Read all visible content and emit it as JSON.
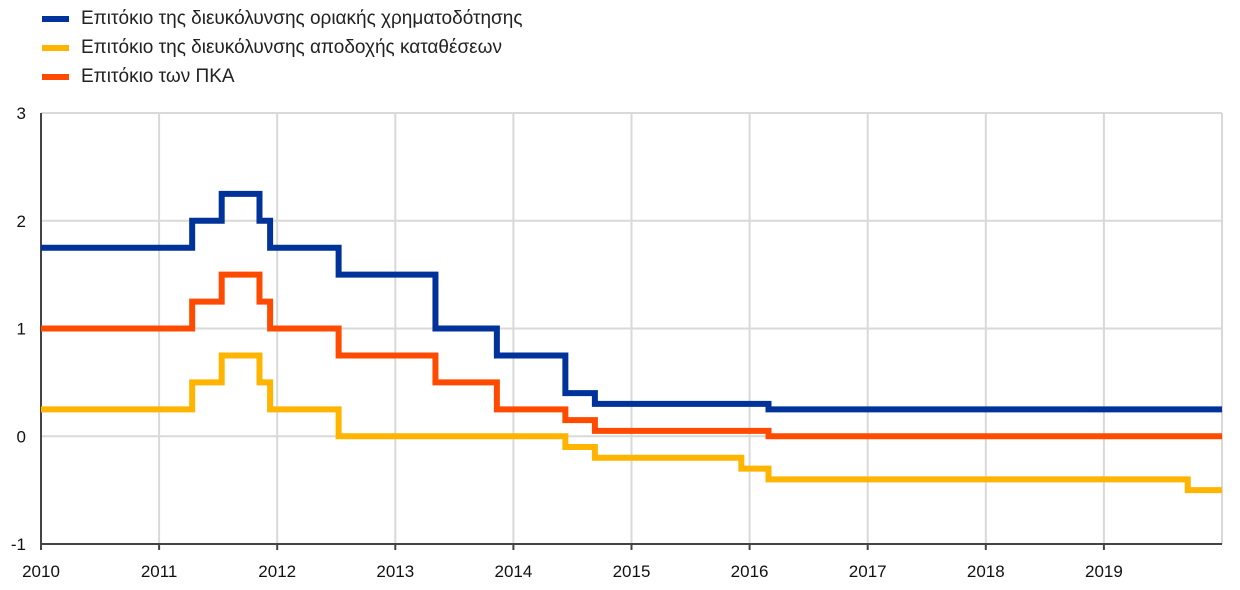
{
  "chart_data": {
    "type": "line",
    "step": true,
    "title": "",
    "xlabel": "",
    "ylabel": "",
    "xlim": [
      2010.0,
      2020.0
    ],
    "ylim": [
      -1,
      3
    ],
    "x_ticks": [
      2010,
      2011,
      2012,
      2013,
      2014,
      2015,
      2016,
      2017,
      2018,
      2019
    ],
    "x_tick_labels": [
      "2010",
      "2011",
      "2012",
      "2013",
      "2014",
      "2015",
      "2016",
      "2017",
      "2018",
      "2019"
    ],
    "y_ticks": [
      -1,
      0,
      1,
      2,
      3
    ],
    "y_tick_labels": [
      "-1",
      "0",
      "1",
      "2",
      "3"
    ],
    "grid": true,
    "legend_position": "top-left",
    "series": [
      {
        "name": "Επιτόκιο της διευκόλυνσης οριακής χρηματοδότησης",
        "color": "#003399",
        "x": [
          2010.0,
          2011.28,
          2011.53,
          2011.85,
          2011.94,
          2012.52,
          2013.34,
          2013.86,
          2014.44,
          2014.69,
          2016.16,
          2020.0
        ],
        "y": [
          1.75,
          2.0,
          2.25,
          2.0,
          1.75,
          1.5,
          1.0,
          0.75,
          0.4,
          0.3,
          0.25,
          0.25
        ]
      },
      {
        "name": "Επιτόκιο της διευκόλυνσης αποδοχής καταθέσεων",
        "color": "#FFB400",
        "x": [
          2010.0,
          2011.28,
          2011.53,
          2011.85,
          2011.94,
          2012.52,
          2014.44,
          2014.69,
          2015.93,
          2016.16,
          2019.71,
          2020.0
        ],
        "y": [
          0.25,
          0.5,
          0.75,
          0.5,
          0.25,
          0.0,
          -0.1,
          -0.2,
          -0.3,
          -0.4,
          -0.5,
          -0.5
        ]
      },
      {
        "name": "Επιτόκιο των ΠΚΑ",
        "color": "#FF4B00",
        "x": [
          2010.0,
          2011.28,
          2011.53,
          2011.85,
          2011.94,
          2012.52,
          2013.34,
          2013.86,
          2014.44,
          2014.69,
          2016.16,
          2020.0
        ],
        "y": [
          1.0,
          1.25,
          1.5,
          1.25,
          1.0,
          0.75,
          0.5,
          0.25,
          0.15,
          0.05,
          0.0,
          0.0
        ]
      }
    ]
  }
}
